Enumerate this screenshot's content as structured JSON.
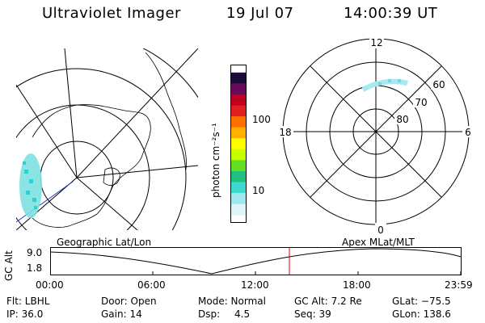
{
  "header": {
    "title": "Ultraviolet Imager",
    "date": "19 Jul 07",
    "time": "14:00:39 UT"
  },
  "colorbar": {
    "unit_label": "photon cm⁻²s⁻¹",
    "ticks": [
      "100",
      "10"
    ],
    "colors": [
      "#1a0a3a",
      "#6a0a5a",
      "#c00020",
      "#e02020",
      "#ff7000",
      "#ffb000",
      "#ffff00",
      "#c8ff00",
      "#60e020",
      "#20c080",
      "#40d8d0",
      "#a0e8f0",
      "#e0f4f8"
    ]
  },
  "polar": {
    "mlt_labels": {
      "top": "12",
      "left": "18",
      "right": "6",
      "bottom": "0"
    },
    "lat_labels": [
      "60",
      "70",
      "80"
    ]
  },
  "strip": {
    "left_label": "Geographic Lat/Lon",
    "right_label": "Apex MLat/MLT",
    "y_axis_label": "GC Alt",
    "y_ticks": [
      "9.0",
      "1.8"
    ],
    "x_ticks": [
      "00:00",
      "06:00",
      "12:00",
      "18:00",
      "23:59"
    ]
  },
  "info": {
    "row1": {
      "filter": "Flt: LBHL",
      "door": "Door: Open",
      "mode": "Mode: Normal",
      "gc_alt": "GC Alt: 7.2 Re",
      "glat": "GLat: −75.5"
    },
    "row2": {
      "ip": "IP: 36.0",
      "gain": "Gain: 14",
      "dsp_label": "Dsp:",
      "dsp_value": "4.5",
      "seq": "Seq: 39",
      "glon": "GLon: 138.6"
    }
  }
}
